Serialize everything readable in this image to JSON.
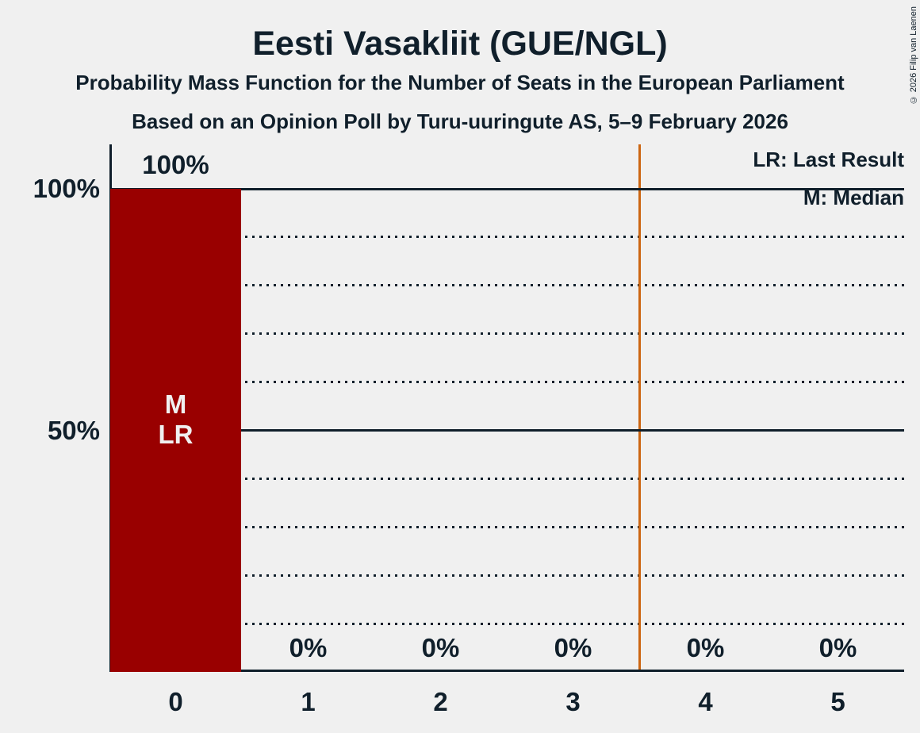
{
  "title": "Eesti Vasakliit (GUE/NGL)",
  "subtitle1": "Probability Mass Function for the Number of Seats in the European Parliament",
  "subtitle2": "Based on an Opinion Poll by Turu-uuringute AS, 5–9 February 2026",
  "legend": {
    "last_result": "LR: Last Result",
    "median": "M: Median"
  },
  "copyright": "© 2026 Filip van Laenen",
  "colors": {
    "background": "#f0f0f0",
    "text": "#101f2b",
    "bar": "#990000",
    "bar_label": "#f0f0f0",
    "majority_line": "#cc6612"
  },
  "chart_data": {
    "type": "bar",
    "title": "Eesti Vasakliit (GUE/NGL)",
    "categories": [
      "0",
      "1",
      "2",
      "3",
      "4",
      "5"
    ],
    "values": [
      100,
      0,
      0,
      0,
      0,
      0
    ],
    "value_labels": [
      "100%",
      "0%",
      "0%",
      "0%",
      "0%",
      "0%"
    ],
    "ylim": [
      0,
      100
    ],
    "y_tick_labels": [
      {
        "value": 100,
        "label": "100%"
      },
      {
        "value": 50,
        "label": "50%"
      }
    ],
    "y_solid_gridlines": [
      100,
      50
    ],
    "y_dotted_gridlines": [
      90,
      80,
      70,
      60,
      40,
      30,
      20,
      10
    ],
    "majority_threshold_x": 3.5,
    "median_seats": 0,
    "last_result_seats": 0,
    "bar_annotations": [
      {
        "category": "0",
        "lines": [
          "M",
          "LR"
        ]
      }
    ],
    "legend_position": "top-right",
    "grid": "horizontal-dotted"
  }
}
